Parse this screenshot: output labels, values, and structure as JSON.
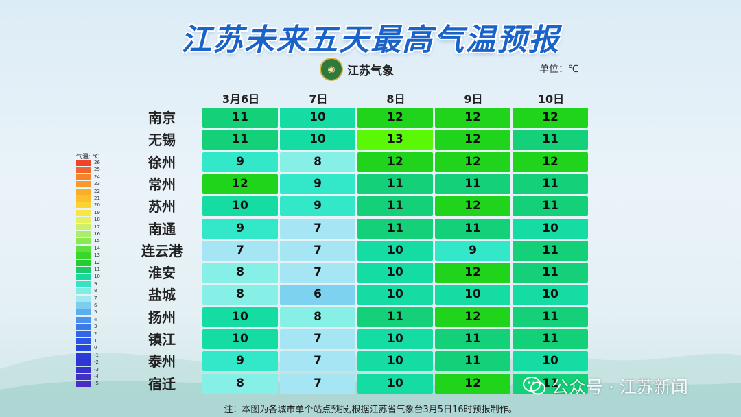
{
  "title": "江苏未来五天最高气温预报",
  "logo": {
    "text": "江苏气象",
    "icon": "emblem-icon"
  },
  "unit": "单位：℃",
  "dates": [
    "3月6日",
    "7日",
    "8日",
    "9日",
    "10日"
  ],
  "cities": [
    {
      "name": "南京",
      "values": [
        11,
        10,
        12,
        12,
        12
      ]
    },
    {
      "name": "无锡",
      "values": [
        11,
        10,
        13,
        12,
        11
      ]
    },
    {
      "name": "徐州",
      "values": [
        9,
        8,
        12,
        12,
        12
      ]
    },
    {
      "name": "常州",
      "values": [
        12,
        9,
        11,
        11,
        11
      ]
    },
    {
      "name": "苏州",
      "values": [
        10,
        9,
        11,
        12,
        11
      ]
    },
    {
      "name": "南通",
      "values": [
        9,
        7,
        11,
        11,
        10
      ]
    },
    {
      "name": "连云港",
      "values": [
        7,
        7,
        10,
        9,
        11
      ]
    },
    {
      "name": "淮安",
      "values": [
        8,
        7,
        10,
        12,
        11
      ]
    },
    {
      "name": "盐城",
      "values": [
        8,
        6,
        10,
        10,
        10
      ]
    },
    {
      "name": "扬州",
      "values": [
        10,
        8,
        11,
        12,
        11
      ]
    },
    {
      "name": "镇江",
      "values": [
        10,
        7,
        10,
        11,
        11
      ]
    },
    {
      "name": "泰州",
      "values": [
        9,
        7,
        10,
        11,
        10
      ]
    },
    {
      "name": "宿迁",
      "values": [
        8,
        7,
        10,
        12,
        11
      ]
    }
  ],
  "colors": {
    "6": "#7dd3ef",
    "7": "#a6e6f4",
    "8": "#86f0e6",
    "9": "#33e8c8",
    "10": "#15dca3",
    "11": "#14d079",
    "12": "#1fd41a",
    "13": "#5af706"
  },
  "legend": {
    "title": "气温: ℃",
    "items": [
      {
        "label": "26",
        "color": "#f0442a"
      },
      {
        "label": "25",
        "color": "#f2662a"
      },
      {
        "label": "24",
        "color": "#f5832a"
      },
      {
        "label": "23",
        "color": "#f89a2a"
      },
      {
        "label": "22",
        "color": "#faad2a"
      },
      {
        "label": "21",
        "color": "#fcc02c"
      },
      {
        "label": "20",
        "color": "#fdd232"
      },
      {
        "label": "19",
        "color": "#f7e646"
      },
      {
        "label": "18",
        "color": "#e6f05c"
      },
      {
        "label": "17",
        "color": "#ccf06a"
      },
      {
        "label": "16",
        "color": "#a8ee66"
      },
      {
        "label": "15",
        "color": "#86ea50"
      },
      {
        "label": "14",
        "color": "#5ee23c"
      },
      {
        "label": "13",
        "color": "#38d82a"
      },
      {
        "label": "12",
        "color": "#1fcf2e"
      },
      {
        "label": "11",
        "color": "#19cc6a"
      },
      {
        "label": "10",
        "color": "#18d8a0"
      },
      {
        "label": "9",
        "color": "#36e2c4"
      },
      {
        "label": "8",
        "color": "#80ede0"
      },
      {
        "label": "7",
        "color": "#a2e8f2"
      },
      {
        "label": "6",
        "color": "#7ccdf0"
      },
      {
        "label": "5",
        "color": "#5aaef0"
      },
      {
        "label": "4",
        "color": "#4a92ee"
      },
      {
        "label": "3",
        "color": "#3a7aec"
      },
      {
        "label": "2",
        "color": "#2f66ea"
      },
      {
        "label": "1",
        "color": "#2a55e6"
      },
      {
        "label": "0",
        "color": "#2646e0"
      },
      {
        "label": "-1",
        "color": "#2a3cd8"
      },
      {
        "label": "-2",
        "color": "#2f34d2"
      },
      {
        "label": "-3",
        "color": "#3730cc"
      },
      {
        "label": "-4",
        "color": "#4030c8"
      },
      {
        "label": "-5",
        "color": "#4a2ec4"
      }
    ]
  },
  "note": "注：本图为各城市单个站点预报,根据江苏省气象台3月5日16时预报制作。",
  "watermark": {
    "text": "公众号 · 江苏新闻",
    "icon": "wechat-icon"
  }
}
